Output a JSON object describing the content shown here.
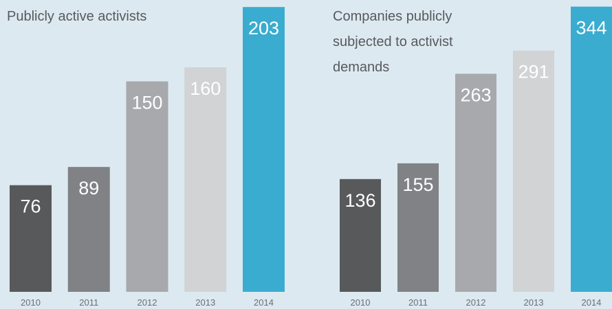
{
  "chart_data": [
    {
      "type": "bar",
      "title": "Publicly active activists",
      "categories": [
        "2010",
        "2011",
        "2012",
        "2013",
        "2014"
      ],
      "values": [
        76,
        89,
        150,
        160,
        203
      ],
      "colors": [
        "#58595b",
        "#808285",
        "#a7a9ac",
        "#d1d3d4",
        "#3aaccf"
      ],
      "ylim": [
        0,
        208
      ]
    },
    {
      "type": "bar",
      "title": "Companies publicly subjected to activist demands",
      "categories": [
        "2010",
        "2011",
        "2012",
        "2013",
        "2014"
      ],
      "values": [
        136,
        155,
        263,
        291,
        344
      ],
      "colors": [
        "#58595b",
        "#808285",
        "#a7a9ac",
        "#d1d3d4",
        "#3aaccf"
      ],
      "ylim": [
        0,
        352
      ]
    }
  ]
}
